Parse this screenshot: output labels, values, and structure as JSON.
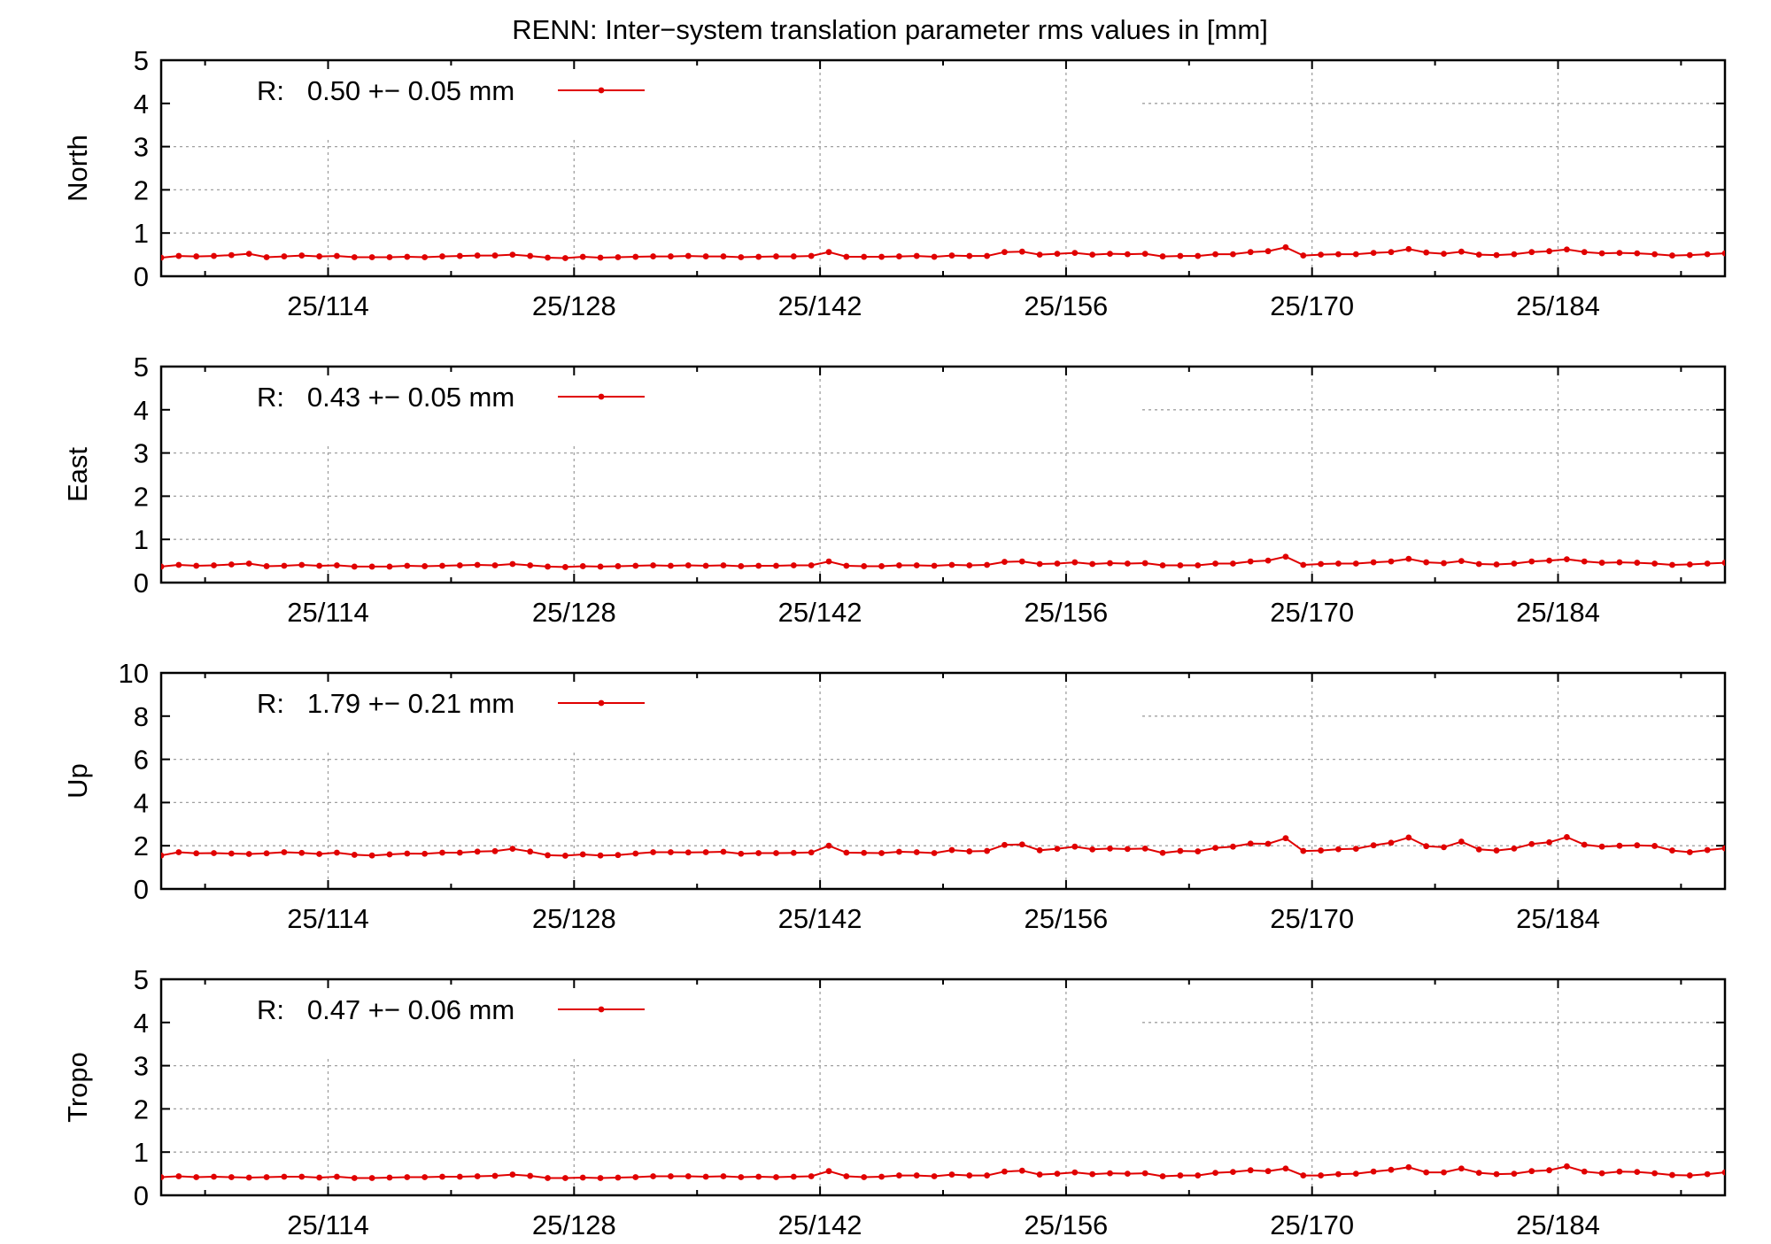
{
  "chart_data": {
    "type": "line",
    "title": "RENN: Inter−system translation parameter rms values in [mm]",
    "x_tick_labels": [
      "25/114",
      "25/128",
      "25/142",
      "25/156",
      "25/170",
      "25/184"
    ],
    "x_tick_days": [
      114,
      128,
      142,
      156,
      170,
      184
    ],
    "x_range": [
      104.5,
      193.5
    ],
    "grid": true,
    "legend_position": "top-left",
    "series_color": "#e00000",
    "panels": [
      {
        "ylabel": "North",
        "ylim": [
          0,
          5
        ],
        "yticks": [
          "0",
          "1",
          "2",
          "3",
          "4",
          "5"
        ],
        "legend": "R:   0.50 +− 0.05 mm",
        "x_days": [
          104.5,
          105.5,
          106.5,
          107.5,
          108.5,
          109.5,
          110.5,
          111.5,
          112.5,
          113.5,
          114.5,
          115.5,
          116.5,
          117.5,
          118.5,
          119.5,
          120.5,
          121.5,
          122.5,
          123.5,
          124.5,
          125.5,
          126.5,
          127.5,
          128.5,
          129.5,
          130.5,
          131.5,
          132.5,
          133.5,
          134.5,
          135.5,
          136.5,
          137.5,
          138.5,
          139.5,
          140.5,
          141.5,
          142.5,
          143.5,
          144.5,
          145.5,
          146.5,
          147.5,
          148.5,
          149.5,
          150.5,
          151.5,
          152.5,
          153.5,
          154.5,
          155.5,
          156.5,
          157.5,
          158.5,
          159.5,
          160.5,
          161.5,
          162.5,
          163.5,
          164.5,
          165.5,
          166.5,
          167.5,
          168.5,
          169.5,
          170.5,
          171.5,
          172.5,
          173.5,
          174.5,
          175.5,
          176.5,
          177.5,
          178.5,
          179.5,
          180.5,
          181.5,
          182.5,
          183.5,
          184.5,
          185.5,
          186.5,
          187.5,
          188.5,
          189.5,
          190.5,
          191.5,
          192.5,
          193.5
        ],
        "values": [
          0.43,
          0.47,
          0.46,
          0.47,
          0.49,
          0.52,
          0.44,
          0.46,
          0.48,
          0.46,
          0.47,
          0.44,
          0.44,
          0.44,
          0.45,
          0.44,
          0.46,
          0.47,
          0.48,
          0.48,
          0.5,
          0.47,
          0.43,
          0.42,
          0.45,
          0.43,
          0.44,
          0.45,
          0.46,
          0.46,
          0.47,
          0.46,
          0.46,
          0.44,
          0.45,
          0.46,
          0.46,
          0.47,
          0.56,
          0.45,
          0.45,
          0.45,
          0.46,
          0.47,
          0.45,
          0.48,
          0.47,
          0.47,
          0.56,
          0.57,
          0.5,
          0.52,
          0.54,
          0.5,
          0.52,
          0.51,
          0.52,
          0.46,
          0.47,
          0.47,
          0.51,
          0.51,
          0.56,
          0.58,
          0.67,
          0.48,
          0.5,
          0.51,
          0.51,
          0.54,
          0.56,
          0.63,
          0.55,
          0.52,
          0.57,
          0.5,
          0.49,
          0.51,
          0.56,
          0.58,
          0.62,
          0.56,
          0.53,
          0.54,
          0.53,
          0.51,
          0.48,
          0.49,
          0.51,
          0.53
        ]
      },
      {
        "ylabel": "East",
        "ylim": [
          0,
          5
        ],
        "yticks": [
          "0",
          "1",
          "2",
          "3",
          "4",
          "5"
        ],
        "legend": "R:   0.43 +− 0.05 mm",
        "x_days": [
          104.5,
          105.5,
          106.5,
          107.5,
          108.5,
          109.5,
          110.5,
          111.5,
          112.5,
          113.5,
          114.5,
          115.5,
          116.5,
          117.5,
          118.5,
          119.5,
          120.5,
          121.5,
          122.5,
          123.5,
          124.5,
          125.5,
          126.5,
          127.5,
          128.5,
          129.5,
          130.5,
          131.5,
          132.5,
          133.5,
          134.5,
          135.5,
          136.5,
          137.5,
          138.5,
          139.5,
          140.5,
          141.5,
          142.5,
          143.5,
          144.5,
          145.5,
          146.5,
          147.5,
          148.5,
          149.5,
          150.5,
          151.5,
          152.5,
          153.5,
          154.5,
          155.5,
          156.5,
          157.5,
          158.5,
          159.5,
          160.5,
          161.5,
          162.5,
          163.5,
          164.5,
          165.5,
          166.5,
          167.5,
          168.5,
          169.5,
          170.5,
          171.5,
          172.5,
          173.5,
          174.5,
          175.5,
          176.5,
          177.5,
          178.5,
          179.5,
          180.5,
          181.5,
          182.5,
          183.5,
          184.5,
          185.5,
          186.5,
          187.5,
          188.5,
          189.5,
          190.5,
          191.5,
          192.5,
          193.5
        ],
        "values": [
          0.37,
          0.41,
          0.39,
          0.4,
          0.42,
          0.44,
          0.38,
          0.39,
          0.41,
          0.39,
          0.4,
          0.37,
          0.37,
          0.37,
          0.39,
          0.38,
          0.39,
          0.4,
          0.41,
          0.4,
          0.43,
          0.4,
          0.37,
          0.36,
          0.38,
          0.37,
          0.38,
          0.39,
          0.4,
          0.39,
          0.4,
          0.39,
          0.4,
          0.38,
          0.39,
          0.39,
          0.4,
          0.4,
          0.49,
          0.39,
          0.38,
          0.38,
          0.4,
          0.4,
          0.39,
          0.41,
          0.4,
          0.41,
          0.48,
          0.49,
          0.43,
          0.44,
          0.47,
          0.43,
          0.45,
          0.44,
          0.45,
          0.4,
          0.4,
          0.4,
          0.44,
          0.44,
          0.49,
          0.51,
          0.6,
          0.41,
          0.43,
          0.44,
          0.44,
          0.47,
          0.49,
          0.55,
          0.47,
          0.45,
          0.5,
          0.43,
          0.42,
          0.44,
          0.49,
          0.51,
          0.54,
          0.49,
          0.46,
          0.47,
          0.46,
          0.44,
          0.41,
          0.42,
          0.44,
          0.46
        ]
      },
      {
        "ylabel": "Up",
        "ylim": [
          0,
          10
        ],
        "yticks": [
          "0",
          "2",
          "4",
          "6",
          "8",
          "10"
        ],
        "legend": "R:   1.79 +− 0.21 mm",
        "x_days": [
          104.5,
          105.5,
          106.5,
          107.5,
          108.5,
          109.5,
          110.5,
          111.5,
          112.5,
          113.5,
          114.5,
          115.5,
          116.5,
          117.5,
          118.5,
          119.5,
          120.5,
          121.5,
          122.5,
          123.5,
          124.5,
          125.5,
          126.5,
          127.5,
          128.5,
          129.5,
          130.5,
          131.5,
          132.5,
          133.5,
          134.5,
          135.5,
          136.5,
          137.5,
          138.5,
          139.5,
          140.5,
          141.5,
          142.5,
          143.5,
          144.5,
          145.5,
          146.5,
          147.5,
          148.5,
          149.5,
          150.5,
          151.5,
          152.5,
          153.5,
          154.5,
          155.5,
          156.5,
          157.5,
          158.5,
          159.5,
          160.5,
          161.5,
          162.5,
          163.5,
          164.5,
          165.5,
          166.5,
          167.5,
          168.5,
          169.5,
          170.5,
          171.5,
          172.5,
          173.5,
          174.5,
          175.5,
          176.5,
          177.5,
          178.5,
          179.5,
          180.5,
          181.5,
          182.5,
          183.5,
          184.5,
          185.5,
          186.5,
          187.5,
          188.5,
          189.5,
          190.5,
          191.5,
          192.5,
          193.5
        ],
        "values": [
          1.55,
          1.7,
          1.65,
          1.66,
          1.64,
          1.62,
          1.65,
          1.7,
          1.67,
          1.62,
          1.68,
          1.58,
          1.55,
          1.6,
          1.64,
          1.63,
          1.68,
          1.68,
          1.73,
          1.75,
          1.86,
          1.73,
          1.56,
          1.54,
          1.6,
          1.55,
          1.57,
          1.64,
          1.7,
          1.7,
          1.69,
          1.7,
          1.72,
          1.63,
          1.66,
          1.66,
          1.67,
          1.69,
          2.0,
          1.68,
          1.67,
          1.66,
          1.72,
          1.7,
          1.66,
          1.8,
          1.74,
          1.76,
          2.04,
          2.06,
          1.79,
          1.86,
          1.96,
          1.83,
          1.87,
          1.85,
          1.87,
          1.67,
          1.76,
          1.74,
          1.9,
          1.96,
          2.1,
          2.09,
          2.35,
          1.76,
          1.78,
          1.84,
          1.86,
          2.02,
          2.14,
          2.38,
          1.98,
          1.93,
          2.19,
          1.83,
          1.78,
          1.87,
          2.08,
          2.16,
          2.4,
          2.05,
          1.96,
          2.0,
          2.02,
          1.99,
          1.78,
          1.7,
          1.8,
          1.88
        ]
      },
      {
        "ylabel": "Tropo",
        "ylim": [
          0,
          5
        ],
        "yticks": [
          "0",
          "1",
          "2",
          "3",
          "4",
          "5"
        ],
        "legend": "R:   0.47 +− 0.06 mm",
        "x_days": [
          104.5,
          105.5,
          106.5,
          107.5,
          108.5,
          109.5,
          110.5,
          111.5,
          112.5,
          113.5,
          114.5,
          115.5,
          116.5,
          117.5,
          118.5,
          119.5,
          120.5,
          121.5,
          122.5,
          123.5,
          124.5,
          125.5,
          126.5,
          127.5,
          128.5,
          129.5,
          130.5,
          131.5,
          132.5,
          133.5,
          134.5,
          135.5,
          136.5,
          137.5,
          138.5,
          139.5,
          140.5,
          141.5,
          142.5,
          143.5,
          144.5,
          145.5,
          146.5,
          147.5,
          148.5,
          149.5,
          150.5,
          151.5,
          152.5,
          153.5,
          154.5,
          155.5,
          156.5,
          157.5,
          158.5,
          159.5,
          160.5,
          161.5,
          162.5,
          163.5,
          164.5,
          165.5,
          166.5,
          167.5,
          168.5,
          169.5,
          170.5,
          171.5,
          172.5,
          173.5,
          174.5,
          175.5,
          176.5,
          177.5,
          178.5,
          179.5,
          180.5,
          181.5,
          182.5,
          183.5,
          184.5,
          185.5,
          186.5,
          187.5,
          188.5,
          189.5,
          190.5,
          191.5,
          192.5,
          193.5
        ],
        "values": [
          0.42,
          0.44,
          0.42,
          0.43,
          0.42,
          0.41,
          0.42,
          0.43,
          0.43,
          0.41,
          0.43,
          0.4,
          0.4,
          0.41,
          0.42,
          0.42,
          0.43,
          0.43,
          0.44,
          0.45,
          0.48,
          0.45,
          0.4,
          0.4,
          0.41,
          0.4,
          0.41,
          0.42,
          0.44,
          0.44,
          0.44,
          0.43,
          0.44,
          0.42,
          0.43,
          0.42,
          0.43,
          0.44,
          0.56,
          0.44,
          0.42,
          0.43,
          0.46,
          0.46,
          0.44,
          0.48,
          0.46,
          0.46,
          0.55,
          0.57,
          0.48,
          0.5,
          0.53,
          0.49,
          0.51,
          0.5,
          0.51,
          0.44,
          0.46,
          0.46,
          0.52,
          0.54,
          0.58,
          0.56,
          0.62,
          0.46,
          0.46,
          0.49,
          0.5,
          0.55,
          0.59,
          0.65,
          0.53,
          0.53,
          0.62,
          0.52,
          0.49,
          0.5,
          0.56,
          0.58,
          0.67,
          0.55,
          0.51,
          0.55,
          0.54,
          0.51,
          0.47,
          0.46,
          0.49,
          0.53
        ]
      }
    ]
  }
}
